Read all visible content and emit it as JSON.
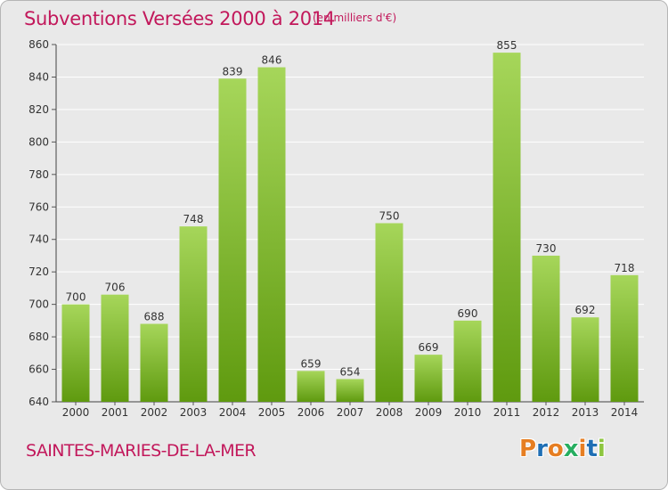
{
  "header": {
    "title": "Subventions Versées 2000 à 2014",
    "units": "(en milliers d'€)"
  },
  "footer": {
    "commune": "SAINTES-MARIES-DE-LA-MER",
    "logo": "Proxiti"
  },
  "colors": {
    "bar_light": "#a6d65a",
    "bar_dark": "#5f9a0f",
    "title": "#c2185b",
    "background": "#e9e9e9",
    "grid": "#ffffff",
    "logo_letters": [
      "#e67e22",
      "#1f6fb5",
      "#e67e22",
      "#27ae60",
      "#e67e22",
      "#1f6fb5",
      "#8dc63f"
    ]
  },
  "chart_data": {
    "type": "bar",
    "title": "Subventions Versées 2000 à 2014",
    "subtitle": "(en milliers d'€)",
    "xlabel": "",
    "ylabel": "",
    "categories": [
      "2000",
      "2001",
      "2002",
      "2003",
      "2004",
      "2005",
      "2006",
      "2007",
      "2008",
      "2009",
      "2010",
      "2011",
      "2012",
      "2013",
      "2014"
    ],
    "values": [
      700,
      706,
      688,
      748,
      839,
      846,
      659,
      654,
      750,
      669,
      690,
      855,
      730,
      692,
      718
    ],
    "data_labels": [
      "700",
      "706",
      "688",
      "748",
      "839",
      "846",
      "659",
      "654",
      "750",
      "669",
      "690",
      "855",
      "730",
      "692",
      "718"
    ],
    "ylim": [
      640,
      860
    ],
    "yticks": [
      640,
      660,
      680,
      700,
      720,
      740,
      760,
      780,
      800,
      820,
      840,
      860
    ],
    "ytick_labels": [
      "640",
      "660",
      "680",
      "700",
      "720",
      "740",
      "760",
      "780",
      "800",
      "820",
      "840",
      "860"
    ],
    "grid": true,
    "legend": "none"
  }
}
